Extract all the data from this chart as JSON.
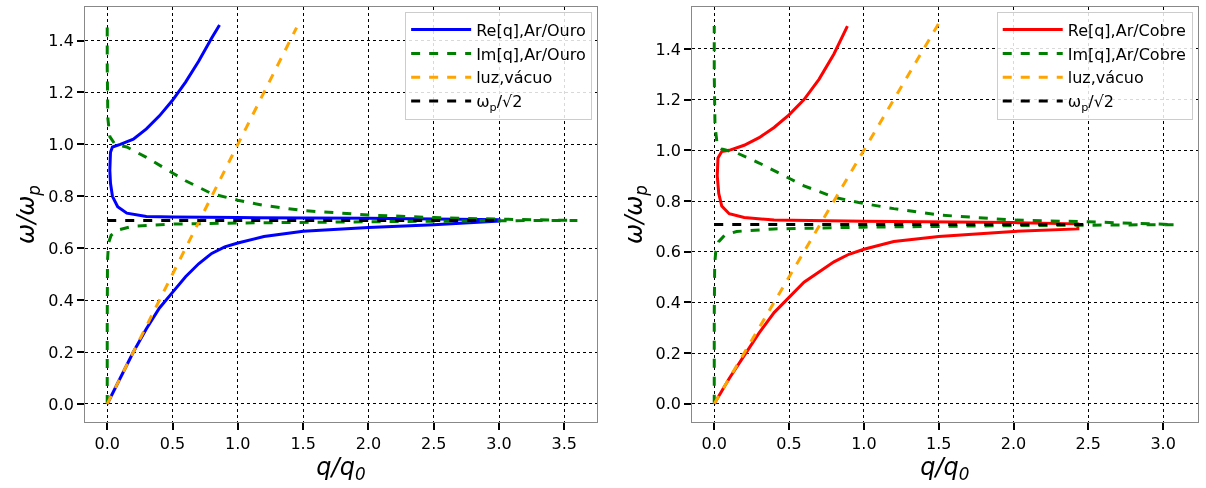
{
  "chart_data": [
    {
      "type": "line",
      "xlabel": "q/q$_{0}$",
      "ylabel": "ω/ω$_{p}$",
      "xlim": [
        -0.17,
        3.75
      ],
      "ylim": [
        -0.07,
        1.53
      ],
      "xticks": [
        {
          "value": 0,
          "label": "0.0"
        },
        {
          "value": 0.5,
          "label": "0.5"
        },
        {
          "value": 1,
          "label": "1.0"
        },
        {
          "value": 1.5,
          "label": "1.5"
        },
        {
          "value": 2,
          "label": "2.0"
        },
        {
          "value": 2.5,
          "label": "2.5"
        },
        {
          "value": 3,
          "label": "3.0"
        },
        {
          "value": 3.5,
          "label": "3.5"
        }
      ],
      "yticks": [
        {
          "value": 0,
          "label": "0.0"
        },
        {
          "value": 0.2,
          "label": "0.2"
        },
        {
          "value": 0.4,
          "label": "0.4"
        },
        {
          "value": 0.6,
          "label": "0.6"
        },
        {
          "value": 0.8,
          "label": "0.8"
        },
        {
          "value": 1,
          "label": "1.0"
        },
        {
          "value": 1.2,
          "label": "1.2"
        },
        {
          "value": 1.4,
          "label": "1.4"
        }
      ],
      "grid": true,
      "legend": "top right",
      "series": [
        {
          "name": "Re[q],Ar/Ouro",
          "color": "#0000ff",
          "line_style": "solid",
          "x": [
            0,
            0.1,
            0.2,
            0.3,
            0.4,
            0.5,
            0.6,
            0.7,
            0.8,
            0.9,
            1.0,
            1.2,
            1.5,
            2.0,
            2.5,
            3.0,
            3.0,
            2.0,
            1.0,
            0.5,
            0.3,
            0.15,
            0.08,
            0.04,
            0.025,
            0.02,
            0.025,
            0.04,
            0.1,
            0.2,
            0.3,
            0.4,
            0.5,
            0.6,
            0.7,
            0.8,
            0.86
          ],
          "values": [
            0,
            0.1,
            0.2,
            0.29,
            0.37,
            0.43,
            0.49,
            0.54,
            0.58,
            0.605,
            0.62,
            0.645,
            0.665,
            0.68,
            0.69,
            0.705,
            0.71,
            0.715,
            0.718,
            0.72,
            0.722,
            0.735,
            0.76,
            0.8,
            0.85,
            0.9,
            0.97,
            0.99,
            1.0,
            1.02,
            1.06,
            1.11,
            1.17,
            1.24,
            1.32,
            1.41,
            1.46
          ]
        },
        {
          "name": "Im[q],Ar/Ouro",
          "color": "#008000",
          "line_style": "dashed",
          "x": [
            0,
            0,
            0.002,
            0.01,
            0.03,
            0.08,
            0.2,
            0.5,
            1.0,
            2.0,
            3.0,
            3.6,
            3.0,
            2.5,
            2.0,
            1.5,
            1.2,
            1.0,
            0.8,
            0.6,
            0.5,
            0.3,
            0.15,
            0.06,
            0.02,
            0.005,
            0,
            0
          ],
          "values": [
            0,
            0.3,
            0.55,
            0.62,
            0.65,
            0.67,
            0.685,
            0.693,
            0.697,
            0.702,
            0.706,
            0.707,
            0.712,
            0.718,
            0.728,
            0.745,
            0.765,
            0.785,
            0.81,
            0.86,
            0.89,
            0.95,
            0.99,
            1.0,
            1.03,
            1.1,
            1.3,
            1.46
          ]
        },
        {
          "name": "luz,vácuo",
          "color": "#ffa500",
          "line_style": "dashed",
          "x": [
            0,
            1.45
          ],
          "values": [
            0,
            1.45
          ]
        },
        {
          "name": "ω$_{p}$/√2",
          "color": "#000000",
          "line_style": "dashed",
          "x": [
            0,
            3.0
          ],
          "values": [
            0.707,
            0.707
          ]
        }
      ]
    },
    {
      "type": "line",
      "xlabel": "q/q$_{0}$",
      "ylabel": "ω/ω$_{p}$",
      "xlim": [
        -0.147,
        3.23
      ],
      "ylim": [
        -0.072,
        1.566
      ],
      "xticks": [
        {
          "value": 0,
          "label": "0.0"
        },
        {
          "value": 0.5,
          "label": "0.5"
        },
        {
          "value": 1,
          "label": "1.0"
        },
        {
          "value": 1.5,
          "label": "1.5"
        },
        {
          "value": 2,
          "label": "2.0"
        },
        {
          "value": 2.5,
          "label": "2.5"
        },
        {
          "value": 3,
          "label": "3.0"
        }
      ],
      "yticks": [
        {
          "value": 0,
          "label": "0.0"
        },
        {
          "value": 0.2,
          "label": "0.2"
        },
        {
          "value": 0.4,
          "label": "0.4"
        },
        {
          "value": 0.6,
          "label": "0.6"
        },
        {
          "value": 0.8,
          "label": "0.8"
        },
        {
          "value": 1,
          "label": "1.0"
        },
        {
          "value": 1.2,
          "label": "1.2"
        },
        {
          "value": 1.4,
          "label": "1.4"
        }
      ],
      "grid": true,
      "legend": "top right",
      "series": [
        {
          "name": "Re[q],Ar/Cobre",
          "color": "#ff0000",
          "line_style": "solid",
          "x": [
            0,
            0.1,
            0.2,
            0.3,
            0.4,
            0.5,
            0.6,
            0.7,
            0.8,
            0.9,
            1.0,
            1.2,
            1.5,
            2.0,
            2.43,
            2.43,
            2.0,
            1.0,
            0.4,
            0.2,
            0.1,
            0.05,
            0.03,
            0.02,
            0.025,
            0.05,
            0.1,
            0.2,
            0.3,
            0.4,
            0.5,
            0.6,
            0.7,
            0.8,
            0.89
          ],
          "values": [
            0,
            0.1,
            0.19,
            0.28,
            0.36,
            0.42,
            0.48,
            0.52,
            0.56,
            0.59,
            0.61,
            0.64,
            0.66,
            0.68,
            0.69,
            0.71,
            0.715,
            0.72,
            0.725,
            0.735,
            0.75,
            0.78,
            0.83,
            0.9,
            0.97,
            0.995,
            1.0,
            1.02,
            1.05,
            1.09,
            1.14,
            1.2,
            1.28,
            1.38,
            1.49
          ]
        },
        {
          "name": "Im[q],Ar/Cobre",
          "color": "#008000",
          "line_style": "dashed",
          "x": [
            0,
            0,
            0.003,
            0.01,
            0.03,
            0.07,
            0.15,
            0.4,
            1.0,
            2.0,
            3.08,
            2.5,
            2.0,
            1.5,
            1.2,
            1.0,
            0.8,
            0.6,
            0.5,
            0.3,
            0.15,
            0.05,
            0.02,
            0.005,
            0,
            0
          ],
          "values": [
            0,
            0.35,
            0.55,
            0.6,
            0.64,
            0.665,
            0.68,
            0.69,
            0.697,
            0.703,
            0.707,
            0.718,
            0.725,
            0.745,
            0.77,
            0.79,
            0.815,
            0.86,
            0.89,
            0.95,
            0.99,
            1.005,
            1.02,
            1.1,
            1.3,
            1.49
          ]
        },
        {
          "name": "luz,vácuo",
          "color": "#ffa500",
          "line_style": "dashed",
          "x": [
            0,
            1.5
          ],
          "values": [
            0,
            1.5
          ]
        },
        {
          "name": "ω$_{p}$/√2",
          "color": "#000000",
          "line_style": "dashed",
          "x": [
            0,
            2.5
          ],
          "values": [
            0.707,
            0.707
          ]
        }
      ]
    }
  ]
}
